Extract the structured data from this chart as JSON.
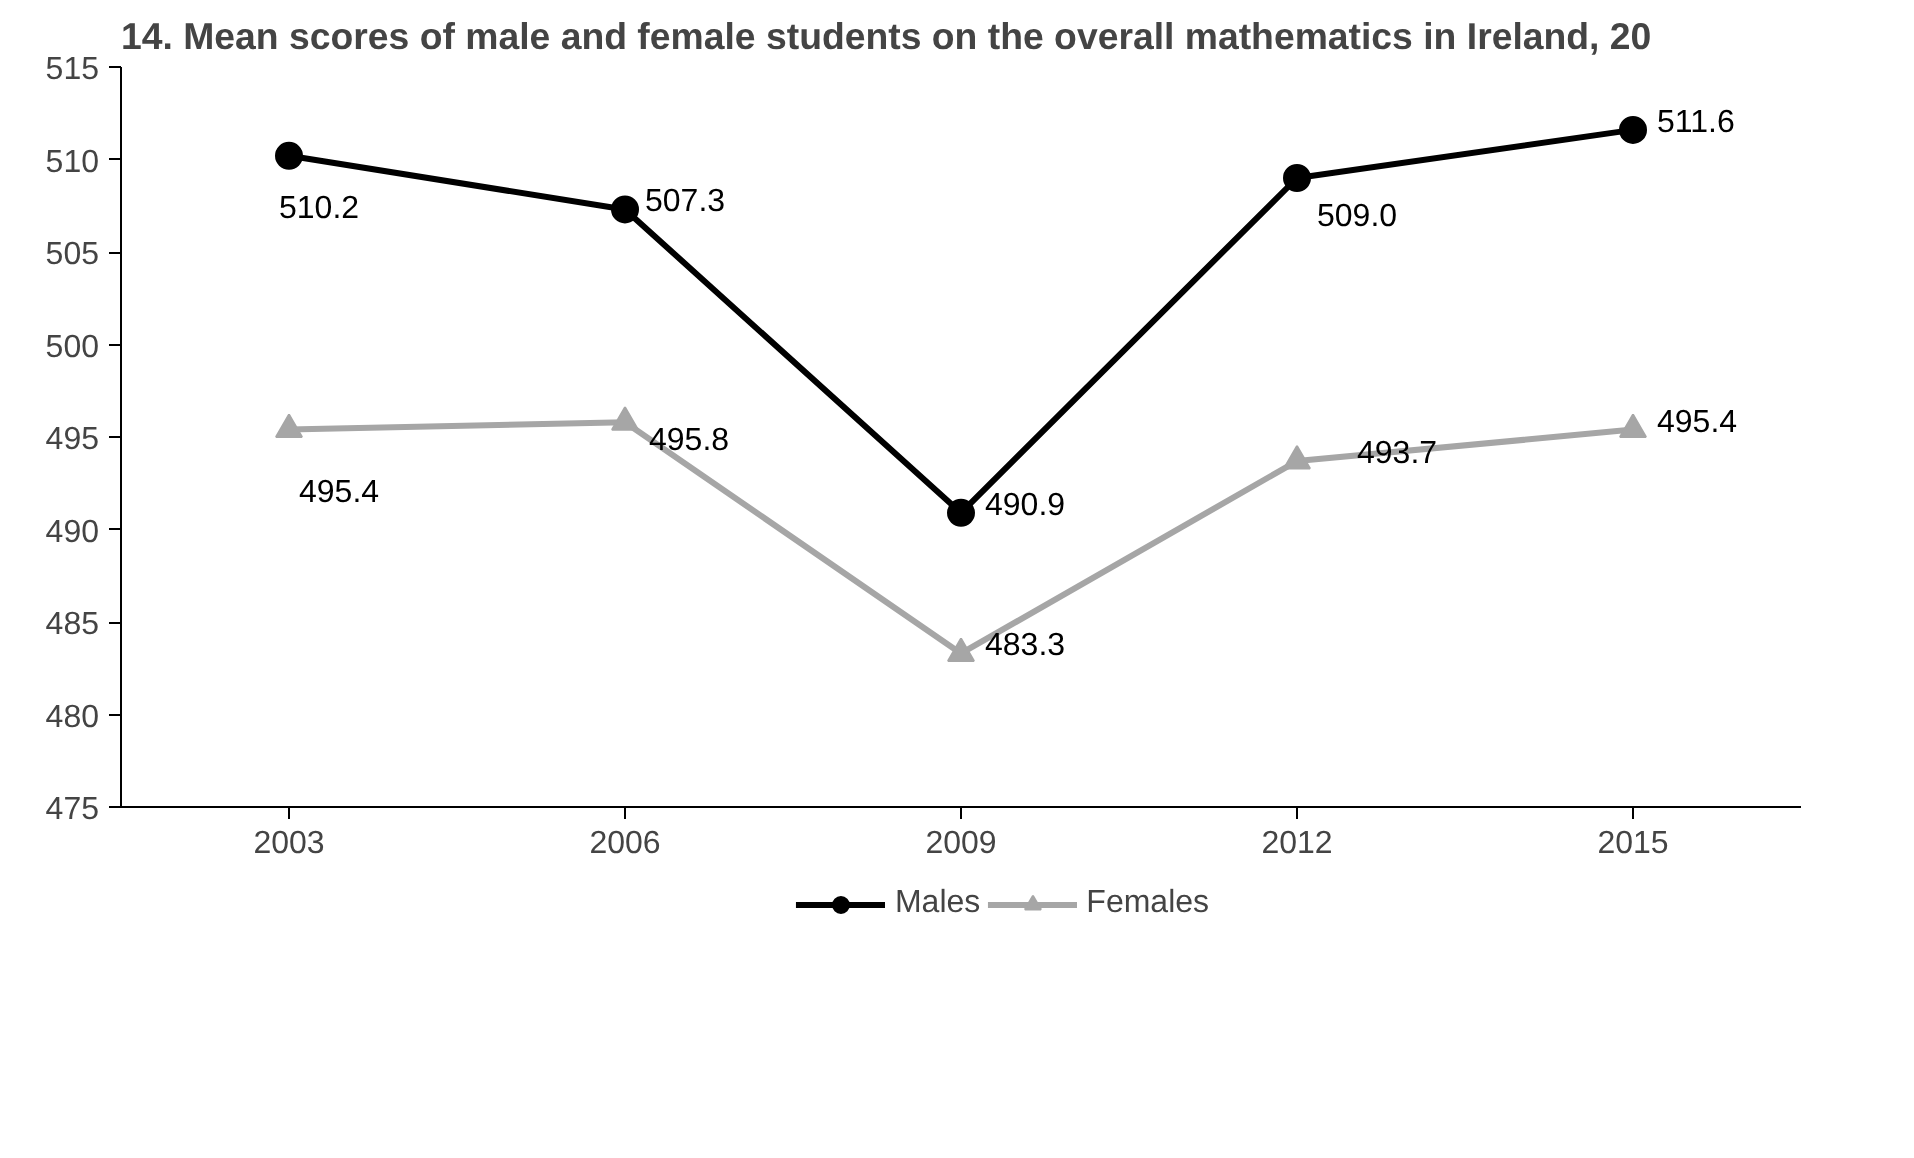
{
  "chart_data": {
    "type": "line",
    "title": "14. Mean scores of male and female students on the overall mathematics in Ireland, 20",
    "categories": [
      "2003",
      "2006",
      "2009",
      "2012",
      "2015"
    ],
    "series": [
      {
        "name": "Males",
        "color": "#000000",
        "marker": "circle",
        "values": [
          510.2,
          507.3,
          490.9,
          509.0,
          511.6
        ],
        "value_labels": [
          "510.2",
          "507.3",
          "490.9",
          "509.0",
          "511.6"
        ]
      },
      {
        "name": "Females",
        "color": "#a6a6a6",
        "marker": "triangle",
        "values": [
          495.4,
          495.8,
          483.3,
          493.7,
          495.4
        ],
        "value_labels": [
          "495.4",
          "495.8",
          "483.3",
          "493.7",
          "495.4"
        ]
      }
    ],
    "ylim": [
      475,
      515
    ],
    "yticks": [
      475,
      480,
      485,
      490,
      495,
      500,
      505,
      510,
      515
    ],
    "legend": "bottom",
    "line_style": "solid"
  }
}
